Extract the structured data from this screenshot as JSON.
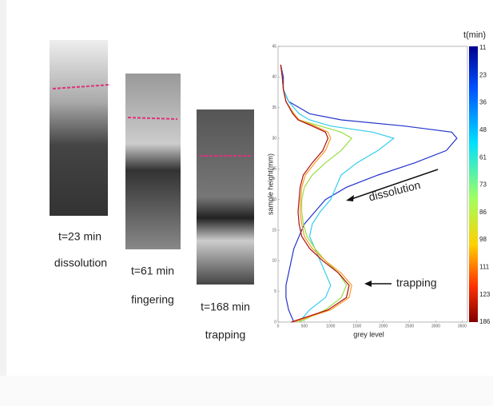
{
  "panels": [
    {
      "time": "t=23 min",
      "label": "dissolution"
    },
    {
      "time": "t=61 min",
      "label": "fingering"
    },
    {
      "time": "t=168 min",
      "label": "trapping"
    }
  ],
  "chart_data": {
    "type": "line",
    "orientation": "horizontal-profiles",
    "xlabel": "grey level",
    "ylabel": "sample height(mm)",
    "xlim": [
      0,
      3600
    ],
    "xticks": [
      0,
      500,
      1000,
      1500,
      2000,
      2500,
      3000,
      3500
    ],
    "ylim": [
      0,
      45
    ],
    "yticks": [
      0,
      5,
      10,
      15,
      20,
      25,
      30,
      35,
      40,
      45
    ],
    "y": [
      0,
      2,
      4,
      6,
      8,
      10,
      12,
      14,
      16,
      18,
      20,
      22,
      24,
      26,
      28,
      30,
      31,
      32,
      33,
      34,
      36,
      38,
      40,
      42
    ],
    "series": [
      {
        "color": "#2233cc",
        "values": [
          300,
          200,
          150,
          150,
          200,
          250,
          300,
          400,
          500,
          700,
          900,
          1300,
          1900,
          2600,
          3200,
          3400,
          3300,
          2400,
          1200,
          600,
          200,
          100,
          100,
          50
        ]
      },
      {
        "color": "#33ccee",
        "values": [
          400,
          600,
          900,
          1000,
          900,
          800,
          700,
          600,
          650,
          800,
          1000,
          1100,
          1200,
          1500,
          1900,
          2200,
          1800,
          1000,
          600,
          400,
          200,
          100,
          80,
          50
        ]
      },
      {
        "color": "#99dd44",
        "values": [
          400,
          900,
          1200,
          1300,
          1150,
          900,
          700,
          550,
          480,
          450,
          450,
          500,
          650,
          900,
          1200,
          1400,
          1200,
          800,
          400,
          300,
          150,
          100,
          80,
          50
        ]
      },
      {
        "color": "#ff9922",
        "values": [
          300,
          1000,
          1350,
          1400,
          1200,
          900,
          650,
          500,
          450,
          420,
          430,
          450,
          520,
          700,
          900,
          1000,
          950,
          700,
          400,
          300,
          150,
          100,
          80,
          50
        ]
      },
      {
        "color": "#aa1111",
        "values": [
          250,
          950,
          1300,
          1350,
          1150,
          850,
          600,
          450,
          400,
          380,
          400,
          420,
          480,
          650,
          850,
          950,
          900,
          650,
          380,
          280,
          150,
          100,
          80,
          50
        ]
      }
    ],
    "colorbar": {
      "title": "t(min)",
      "ticks": [
        11,
        23,
        36,
        48,
        61,
        73,
        86,
        98,
        111,
        123,
        186
      ]
    },
    "annotations": [
      "dissolution",
      "trapping"
    ]
  }
}
